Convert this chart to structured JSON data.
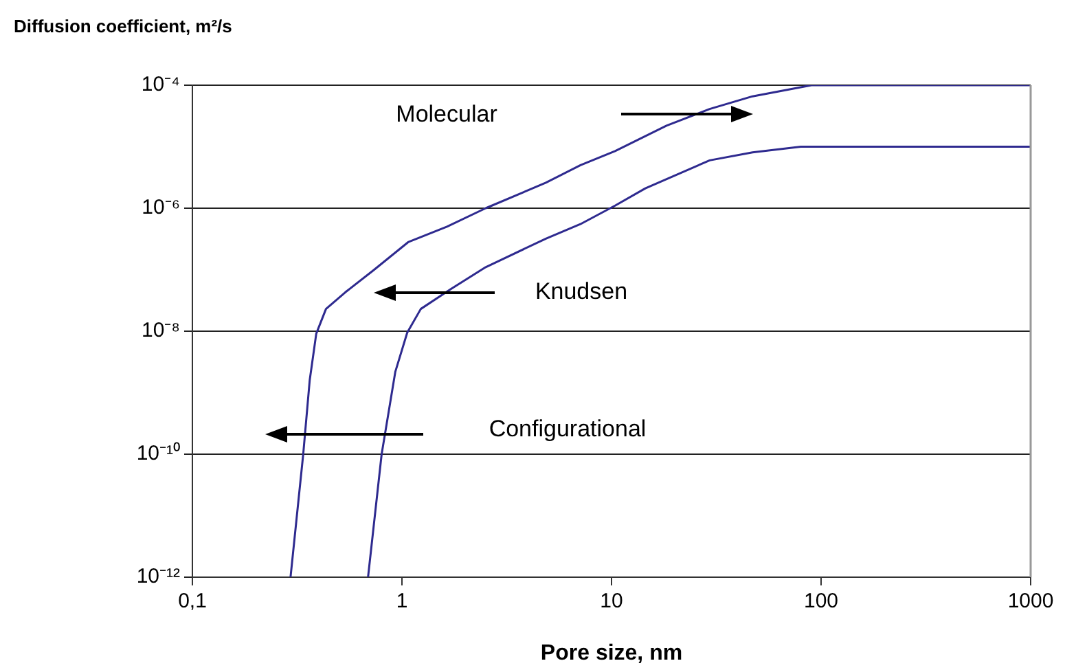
{
  "chart_data": {
    "type": "line",
    "ylabel": "Diffusion coefficient, m²/s",
    "xlabel": "Pore size, nm",
    "log": "xy",
    "grid": "y",
    "legend": false,
    "marker": "none",
    "line_style": "solid",
    "xlim": [
      0.1,
      1000
    ],
    "xticks": [
      {
        "value": 0.1,
        "label": "0,1"
      },
      1,
      10,
      100,
      1000
    ],
    "ylim": [
      1e-12,
      0.0001
    ],
    "yticks": [
      {
        "value": 1e-12,
        "label": "10⁻¹²"
      },
      {
        "value": 1e-10,
        "label": "10⁻¹⁰"
      },
      {
        "value": 1e-08,
        "label": "10⁻⁸"
      },
      {
        "value": 1e-06,
        "label": "10⁻⁶"
      },
      {
        "value": 0.0001,
        "label": "10⁻⁴"
      }
    ],
    "series": [
      {
        "color": "#2e2a8f",
        "x": [
          0.294,
          0.338,
          0.363,
          0.39,
          0.434,
          0.537,
          0.732,
          1.07,
          1.64,
          2.51,
          4.86,
          7.11,
          10.4,
          18.3,
          29.4,
          47.1,
          90,
          1000
        ],
        "values": [
          1e-12,
          1e-10,
          1.6e-09,
          9.1e-09,
          2.3e-08,
          4.3e-08,
          9.8e-08,
          2.8e-07,
          5e-07,
          1e-06,
          2.6e-06,
          5e-06,
          8.5e-06,
          2.2e-05,
          4.1e-05,
          6.6e-05,
          0.0001,
          0.0001
        ]
      },
      {
        "color": "#2e2a8f",
        "x": [
          0.689,
          0.8,
          0.93,
          1.06,
          1.23,
          1.72,
          2.51,
          4.86,
          7.1,
          10.4,
          14.5,
          29.4,
          47.1,
          80,
          1000
        ],
        "values": [
          1e-12,
          1e-10,
          2.2e-09,
          9.5e-09,
          2.3e-08,
          4.9e-08,
          1.1e-07,
          3.2e-07,
          5.5e-07,
          1.1e-06,
          2.1e-06,
          6e-06,
          8.1e-06,
          1e-05,
          1e-05
        ]
      }
    ],
    "annotations": [
      "Molecular",
      "Knudsen",
      "Configurational"
    ]
  }
}
